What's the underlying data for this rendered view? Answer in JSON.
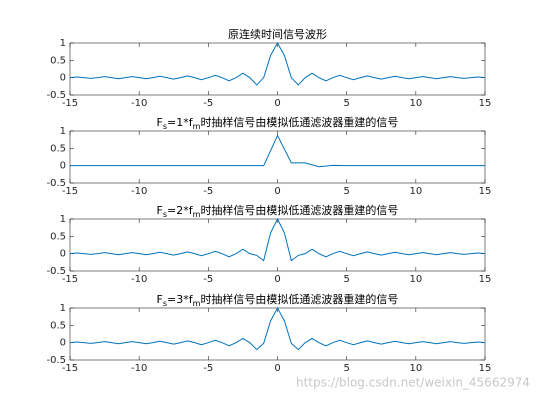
{
  "chart_data": [
    {
      "type": "line",
      "title": "原连续时间信号波形",
      "x": [
        -15,
        -14.5,
        -14,
        -13.5,
        -13,
        -12.5,
        -12,
        -11.5,
        -11,
        -10.5,
        -10,
        -9.5,
        -9,
        -8.5,
        -8,
        -7.5,
        -7,
        -6.5,
        -6,
        -5.5,
        -5,
        -4.5,
        -4,
        -3.5,
        -3,
        -2.5,
        -2,
        -1.5,
        -1,
        -0.5,
        0,
        0.5,
        1,
        1.5,
        2,
        2.5,
        3,
        3.5,
        4,
        4.5,
        5,
        5.5,
        6,
        6.5,
        7,
        7.5,
        8,
        8.5,
        9,
        9.5,
        10,
        10.5,
        11,
        11.5,
        12,
        12.5,
        13,
        13.5,
        14,
        14.5,
        15
      ],
      "values": [
        0,
        0.02,
        0,
        -0.02,
        0,
        0.03,
        0,
        -0.03,
        0,
        0.03,
        0,
        -0.03,
        0,
        0.04,
        0,
        -0.04,
        0,
        0.05,
        0,
        -0.06,
        0,
        0.07,
        0,
        -0.09,
        0,
        0.13,
        0,
        -0.21,
        0,
        0.64,
        1,
        0.64,
        0,
        -0.21,
        0,
        0.13,
        0,
        -0.09,
        0,
        0.07,
        0,
        -0.06,
        0,
        0.05,
        0,
        -0.04,
        0,
        0.04,
        0,
        -0.03,
        0,
        0.03,
        0,
        -0.03,
        0,
        0.03,
        0,
        -0.02,
        0,
        0.02,
        0
      ],
      "color": "#0072bd",
      "xlim": [
        -15,
        15
      ],
      "xticks": [
        -15,
        -10,
        -5,
        0,
        5,
        10,
        15
      ],
      "ylim": [
        -0.5,
        1
      ],
      "yticks": [
        -0.5,
        0,
        0.5,
        1
      ]
    },
    {
      "type": "line",
      "title": [
        "F",
        "s",
        "=1*f",
        "m",
        "时抽样信号由模拟低通滤波器重建的信号"
      ],
      "x": [
        -15,
        -14,
        -13,
        -12,
        -11,
        -10,
        -9,
        -8,
        -7,
        -6,
        -5,
        -4,
        -3,
        -2,
        -1,
        0,
        1,
        2,
        3,
        4,
        5,
        6,
        7,
        8,
        9,
        10,
        11,
        12,
        13,
        14,
        15
      ],
      "values": [
        0,
        0,
        0,
        0,
        0,
        0,
        0,
        0,
        0,
        0,
        0,
        0,
        0,
        0,
        0,
        0.87,
        0.08,
        0.08,
        -0.03,
        0.01,
        0,
        0,
        0,
        0,
        0,
        0,
        0,
        0,
        0,
        0,
        0
      ],
      "color": "#0072bd",
      "xlim": [
        -15,
        15
      ],
      "xticks": [
        -15,
        -10,
        -5,
        0,
        5,
        10,
        15
      ],
      "ylim": [
        -0.5,
        1
      ],
      "yticks": [
        -0.5,
        0,
        0.5,
        1
      ]
    },
    {
      "type": "line",
      "title": [
        "F",
        "s",
        "=2*f",
        "m",
        "时抽样信号由模拟低通滤波器重建的信号"
      ],
      "x": [
        -15,
        -14.5,
        -14,
        -13.5,
        -13,
        -12.5,
        -12,
        -11.5,
        -11,
        -10.5,
        -10,
        -9.5,
        -9,
        -8.5,
        -8,
        -7.5,
        -7,
        -6.5,
        -6,
        -5.5,
        -5,
        -4.5,
        -4,
        -3.5,
        -3,
        -2.5,
        -2,
        -1.5,
        -1,
        -0.5,
        0,
        0.5,
        1,
        1.5,
        2,
        2.5,
        3,
        3.5,
        4,
        4.5,
        5,
        5.5,
        6,
        6.5,
        7,
        7.5,
        8,
        8.5,
        9,
        9.5,
        10,
        10.5,
        11,
        11.5,
        12,
        12.5,
        13,
        13.5,
        14,
        14.5,
        15
      ],
      "values": [
        0,
        0.02,
        0,
        -0.02,
        0,
        0.03,
        0,
        -0.03,
        0,
        0.03,
        0,
        -0.03,
        0,
        0.04,
        0,
        -0.04,
        0,
        0.05,
        0,
        -0.06,
        0,
        0.07,
        0,
        -0.09,
        0,
        0.13,
        0,
        -0.05,
        -0.2,
        0.6,
        1,
        0.6,
        -0.2,
        -0.05,
        0,
        0.13,
        0,
        -0.09,
        0,
        0.07,
        0,
        -0.06,
        0,
        0.05,
        0,
        -0.04,
        0,
        0.04,
        0,
        -0.03,
        0,
        0.03,
        0,
        -0.03,
        0,
        0.03,
        0,
        -0.02,
        0,
        0.02,
        0
      ],
      "color": "#0072bd",
      "xlim": [
        -15,
        15
      ],
      "xticks": [
        -15,
        -10,
        -5,
        0,
        5,
        10,
        15
      ],
      "ylim": [
        -0.5,
        1
      ],
      "yticks": [
        -0.5,
        0,
        0.5,
        1
      ]
    },
    {
      "type": "line",
      "title": [
        "F",
        "s",
        "=3*f",
        "m",
        "时抽样信号由模拟低通滤波器重建的信号"
      ],
      "x": [
        -15,
        -14.5,
        -14,
        -13.5,
        -13,
        -12.5,
        -12,
        -11.5,
        -11,
        -10.5,
        -10,
        -9.5,
        -9,
        -8.5,
        -8,
        -7.5,
        -7,
        -6.5,
        -6,
        -5.5,
        -5,
        -4.5,
        -4,
        -3.5,
        -3,
        -2.5,
        -2,
        -1.5,
        -1,
        -0.5,
        0,
        0.5,
        1,
        1.5,
        2,
        2.5,
        3,
        3.5,
        4,
        4.5,
        5,
        5.5,
        6,
        6.5,
        7,
        7.5,
        8,
        8.5,
        9,
        9.5,
        10,
        10.5,
        11,
        11.5,
        12,
        12.5,
        13,
        13.5,
        14,
        14.5,
        15
      ],
      "values": [
        0,
        0.02,
        0,
        -0.02,
        0,
        0.03,
        0,
        -0.03,
        0,
        0.03,
        0,
        -0.03,
        0,
        0.04,
        0,
        -0.04,
        0,
        0.05,
        0,
        -0.06,
        0,
        0.07,
        0,
        -0.09,
        0,
        0.12,
        0,
        -0.2,
        -0.02,
        0.63,
        1,
        0.63,
        -0.02,
        -0.2,
        0,
        0.12,
        0,
        -0.09,
        0,
        0.07,
        0,
        -0.06,
        0,
        0.05,
        0,
        -0.04,
        0,
        0.04,
        0,
        -0.03,
        0,
        0.03,
        0,
        -0.03,
        0,
        0.03,
        0,
        -0.02,
        0,
        0.02,
        0
      ],
      "color": "#0072bd",
      "xlim": [
        -15,
        15
      ],
      "xticks": [
        -15,
        -10,
        -5,
        0,
        5,
        10,
        15
      ],
      "ylim": [
        -0.5,
        1
      ],
      "yticks": [
        -0.5,
        0,
        0.5,
        1
      ]
    }
  ],
  "watermark": "https://blog.csdn.net/weixin_45662974"
}
